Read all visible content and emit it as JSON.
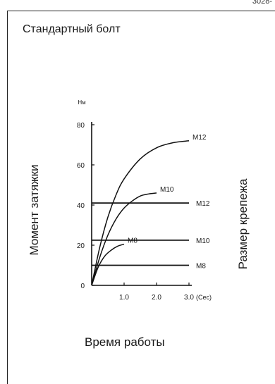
{
  "corner_code": "3028-",
  "chart_data": {
    "type": "line",
    "title": "Стандартный болт",
    "ylabel": "Момент затяжки",
    "xlabel": "Время работы",
    "right_label": "Размер крепежа",
    "y_unit": "Нм",
    "x_unit": "(Сес)",
    "xlim": [
      0,
      3.0
    ],
    "ylim": [
      0,
      80
    ],
    "x_ticks": [
      1.0,
      2.0,
      3.0
    ],
    "x_tick_labels": [
      "1.0",
      "2.0",
      "3.0"
    ],
    "y_ticks": [
      0,
      20,
      40,
      60,
      80
    ],
    "y_tick_labels": [
      "0",
      "20",
      "40",
      "60",
      "80"
    ],
    "grid": false,
    "series": [
      {
        "name": "M12",
        "kind": "curve",
        "x": [
          0,
          0.25,
          0.5,
          0.75,
          1.0,
          1.5,
          2.0,
          2.5,
          3.0
        ],
        "y": [
          0,
          19,
          34,
          45,
          53,
          63,
          68.5,
          71,
          72
        ]
      },
      {
        "name": "M10",
        "kind": "curve",
        "x": [
          0,
          0.25,
          0.5,
          0.75,
          1.0,
          1.25,
          1.5,
          1.75,
          2.0
        ],
        "y": [
          0,
          14,
          25,
          33,
          38.5,
          42,
          44.5,
          45.5,
          46
        ]
      },
      {
        "name": "M8",
        "kind": "curve",
        "x": [
          0,
          0.2,
          0.4,
          0.6,
          0.8,
          1.0
        ],
        "y": [
          0,
          9,
          14.5,
          17.5,
          19.5,
          20.5
        ]
      },
      {
        "name": "M12",
        "kind": "flat",
        "x": [
          0,
          3.0
        ],
        "y": [
          41,
          41
        ]
      },
      {
        "name": "M10",
        "kind": "flat",
        "x": [
          0,
          3.0
        ],
        "y": [
          22.5,
          22.5
        ]
      },
      {
        "name": "M8",
        "kind": "flat",
        "x": [
          0,
          3.0
        ],
        "y": [
          10,
          10
        ]
      }
    ]
  }
}
